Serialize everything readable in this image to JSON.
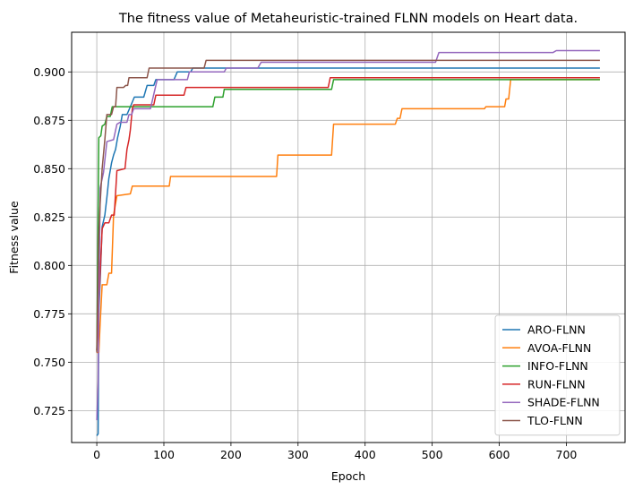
{
  "chart_data": {
    "type": "line",
    "title": "The fitness value of Metaheuristic-trained FLNN models on Heart data.",
    "xlabel": "Epoch",
    "ylabel": "Fitness value",
    "xlim": [
      -37.5,
      787.5
    ],
    "ylim": [
      0.7085,
      0.9205
    ],
    "xticks": [
      0,
      100,
      200,
      300,
      400,
      500,
      600,
      700
    ],
    "yticks": [
      0.725,
      0.75,
      0.775,
      0.8,
      0.825,
      0.85,
      0.875,
      0.9
    ],
    "ytick_labels": [
      "0.725",
      "0.750",
      "0.775",
      "0.800",
      "0.825",
      "0.850",
      "0.875",
      "0.900"
    ],
    "grid": true,
    "legend_position": "lower right",
    "series": [
      {
        "name": "ARO-FLNN",
        "color": "#1f77b4",
        "points": [
          [
            0,
            0.712
          ],
          [
            2,
            0.713
          ],
          [
            3,
            0.775
          ],
          [
            5,
            0.792
          ],
          [
            8,
            0.82
          ],
          [
            12,
            0.826
          ],
          [
            15,
            0.835
          ],
          [
            18,
            0.845
          ],
          [
            22,
            0.853
          ],
          [
            25,
            0.857
          ],
          [
            28,
            0.86
          ],
          [
            31,
            0.866
          ],
          [
            35,
            0.872
          ],
          [
            38,
            0.878
          ],
          [
            45,
            0.878
          ],
          [
            50,
            0.882
          ],
          [
            56,
            0.887
          ],
          [
            70,
            0.887
          ],
          [
            75,
            0.893
          ],
          [
            85,
            0.893
          ],
          [
            88,
            0.896
          ],
          [
            115,
            0.896
          ],
          [
            120,
            0.9
          ],
          [
            140,
            0.9
          ],
          [
            143,
            0.902
          ],
          [
            750,
            0.902
          ]
        ]
      },
      {
        "name": "AVOA-FLNN",
        "color": "#ff7f0e",
        "points": [
          [
            0,
            0.755
          ],
          [
            3,
            0.755
          ],
          [
            5,
            0.77
          ],
          [
            8,
            0.79
          ],
          [
            15,
            0.79
          ],
          [
            18,
            0.796
          ],
          [
            22,
            0.796
          ],
          [
            25,
            0.826
          ],
          [
            30,
            0.836
          ],
          [
            50,
            0.837
          ],
          [
            53,
            0.841
          ],
          [
            108,
            0.841
          ],
          [
            110,
            0.846
          ],
          [
            268,
            0.846
          ],
          [
            270,
            0.857
          ],
          [
            350,
            0.857
          ],
          [
            353,
            0.873
          ],
          [
            445,
            0.873
          ],
          [
            448,
            0.876
          ],
          [
            452,
            0.876
          ],
          [
            455,
            0.881
          ],
          [
            578,
            0.881
          ],
          [
            580,
            0.882
          ],
          [
            608,
            0.882
          ],
          [
            610,
            0.886
          ],
          [
            614,
            0.886
          ],
          [
            617,
            0.896
          ],
          [
            750,
            0.896
          ]
        ]
      },
      {
        "name": "INFO-FLNN",
        "color": "#2ca02c",
        "points": [
          [
            0,
            0.756
          ],
          [
            2,
            0.828
          ],
          [
            3,
            0.866
          ],
          [
            6,
            0.867
          ],
          [
            8,
            0.872
          ],
          [
            12,
            0.873
          ],
          [
            15,
            0.877
          ],
          [
            20,
            0.877
          ],
          [
            23,
            0.882
          ],
          [
            173,
            0.882
          ],
          [
            176,
            0.887
          ],
          [
            188,
            0.887
          ],
          [
            190,
            0.891
          ],
          [
            350,
            0.891
          ],
          [
            353,
            0.896
          ],
          [
            750,
            0.896
          ]
        ]
      },
      {
        "name": "RUN-FLNN",
        "color": "#d62728",
        "points": [
          [
            0,
            0.756
          ],
          [
            3,
            0.78
          ],
          [
            8,
            0.819
          ],
          [
            12,
            0.822
          ],
          [
            18,
            0.822
          ],
          [
            22,
            0.826
          ],
          [
            26,
            0.826
          ],
          [
            30,
            0.849
          ],
          [
            42,
            0.85
          ],
          [
            45,
            0.86
          ],
          [
            48,
            0.865
          ],
          [
            50,
            0.87
          ],
          [
            53,
            0.881
          ],
          [
            55,
            0.883
          ],
          [
            85,
            0.883
          ],
          [
            88,
            0.888
          ],
          [
            130,
            0.888
          ],
          [
            133,
            0.892
          ],
          [
            345,
            0.892
          ],
          [
            348,
            0.897
          ],
          [
            750,
            0.897
          ]
        ]
      },
      {
        "name": "SHADE-FLNN",
        "color": "#9467bd",
        "points": [
          [
            0,
            0.72
          ],
          [
            2,
            0.74
          ],
          [
            5,
            0.84
          ],
          [
            10,
            0.848
          ],
          [
            15,
            0.864
          ],
          [
            25,
            0.865
          ],
          [
            30,
            0.873
          ],
          [
            35,
            0.874
          ],
          [
            45,
            0.874
          ],
          [
            48,
            0.878
          ],
          [
            52,
            0.878
          ],
          [
            55,
            0.881
          ],
          [
            80,
            0.881
          ],
          [
            90,
            0.896
          ],
          [
            135,
            0.896
          ],
          [
            138,
            0.9
          ],
          [
            190,
            0.9
          ],
          [
            193,
            0.902
          ],
          [
            240,
            0.902
          ],
          [
            245,
            0.905
          ],
          [
            505,
            0.905
          ],
          [
            510,
            0.91
          ],
          [
            680,
            0.91
          ],
          [
            685,
            0.911
          ],
          [
            750,
            0.911
          ]
        ]
      },
      {
        "name": "TLO-FLNN",
        "color": "#8c564b",
        "points": [
          [
            0,
            0.755
          ],
          [
            3,
            0.815
          ],
          [
            5,
            0.832
          ],
          [
            8,
            0.85
          ],
          [
            12,
            0.865
          ],
          [
            15,
            0.878
          ],
          [
            22,
            0.878
          ],
          [
            25,
            0.882
          ],
          [
            28,
            0.882
          ],
          [
            30,
            0.892
          ],
          [
            40,
            0.892
          ],
          [
            43,
            0.893
          ],
          [
            46,
            0.893
          ],
          [
            48,
            0.897
          ],
          [
            75,
            0.897
          ],
          [
            78,
            0.902
          ],
          [
            160,
            0.902
          ],
          [
            163,
            0.906
          ],
          [
            750,
            0.906
          ]
        ]
      }
    ]
  }
}
